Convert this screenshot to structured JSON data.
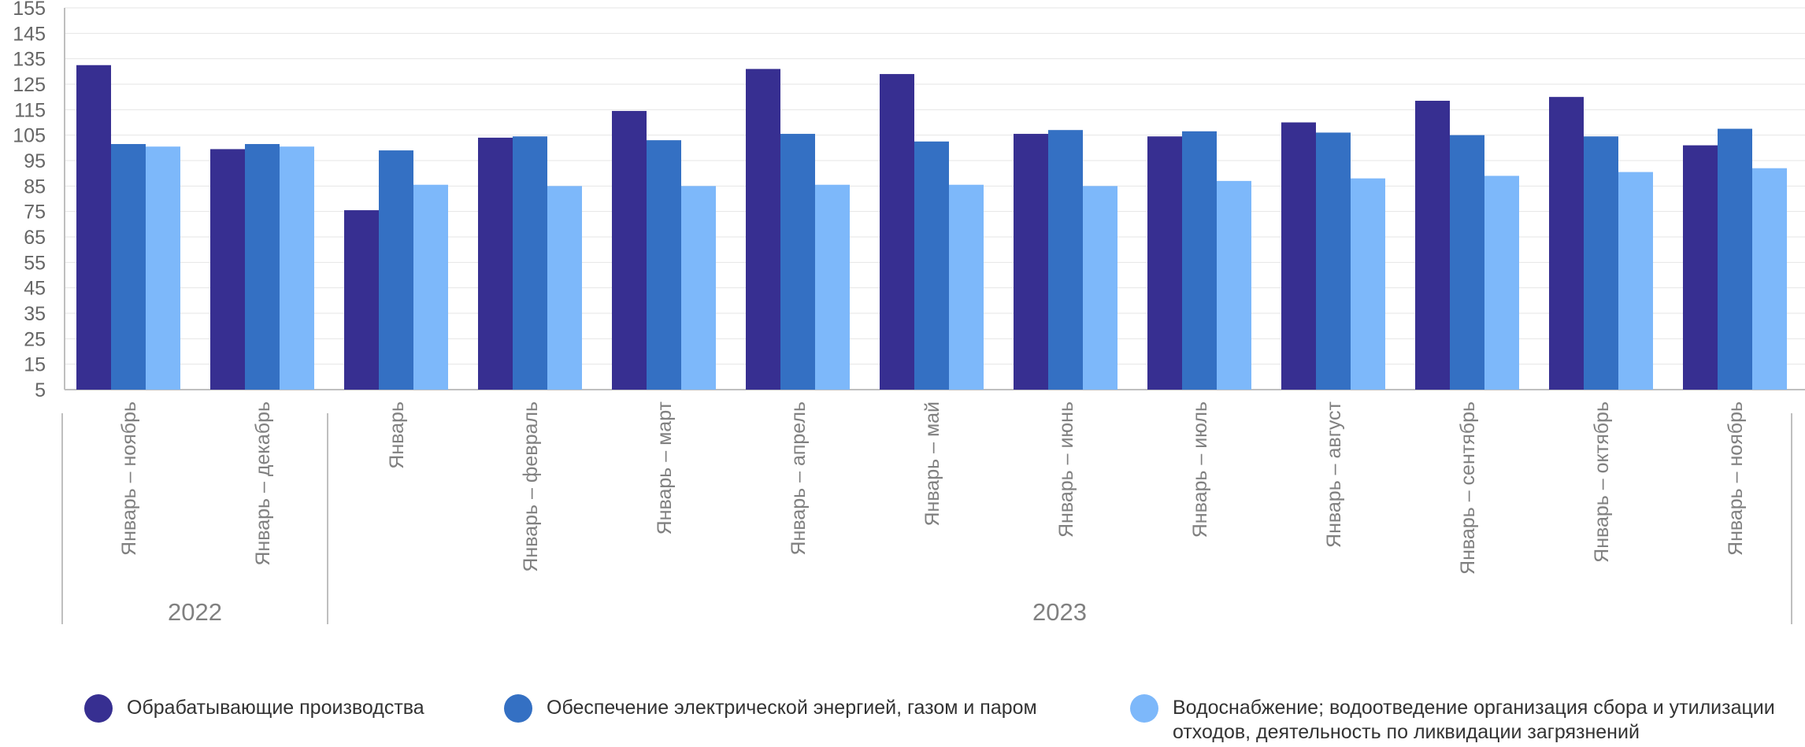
{
  "chart_data": {
    "type": "bar",
    "y_ticks": [
      5,
      15,
      25,
      35,
      45,
      55,
      65,
      75,
      85,
      95,
      105,
      115,
      125,
      135,
      145,
      155
    ],
    "ylim": [
      5,
      155
    ],
    "grid": true,
    "legend_position": "bottom",
    "categories": [
      "Январь – ноябрь",
      "Январь – декабрь",
      "Январь",
      "Январь – февраль",
      "Январь – март",
      "Январь – апрель",
      "Январь – май",
      "Январь – июнь",
      "Январь – июль",
      "Январь – август",
      "Январь – сентябрь",
      "Январь – октябрь",
      "Январь – ноябрь"
    ],
    "groups": [
      {
        "label": "2022",
        "count": 2
      },
      {
        "label": "2023",
        "count": 11
      }
    ],
    "series": [
      {
        "name": "Обрабатывающие производства",
        "color": "#372F91",
        "values": [
          132.5,
          99.5,
          75.5,
          104.0,
          114.5,
          131.0,
          129.0,
          105.5,
          104.5,
          110.0,
          118.5,
          120.0,
          101.0
        ]
      },
      {
        "name": "Обеспечение электрической энергией, газом и паром",
        "color": "#3470C3",
        "values": [
          101.5,
          101.5,
          99.0,
          104.5,
          103.0,
          105.5,
          102.5,
          107.0,
          106.5,
          106.0,
          105.0,
          104.5,
          107.5
        ]
      },
      {
        "name": "Водоснабжение; водоотведение организация сбора и утилизации отходов, деятельность по ликвидации загрязнений",
        "color": "#7DB8FA",
        "values": [
          100.5,
          100.5,
          85.5,
          85.0,
          85.0,
          85.5,
          85.5,
          85.0,
          87.0,
          88.0,
          89.0,
          90.5,
          92.0
        ]
      }
    ],
    "legend_lines": [
      [
        "Обрабатывающие производства"
      ],
      [
        "Обеспечение электрической энергией, газом и паром"
      ],
      [
        "Водоснабжение; водоотведение организация сбора и утилизации",
        "отходов, деятельность по ликвидации загрязнений"
      ]
    ]
  }
}
